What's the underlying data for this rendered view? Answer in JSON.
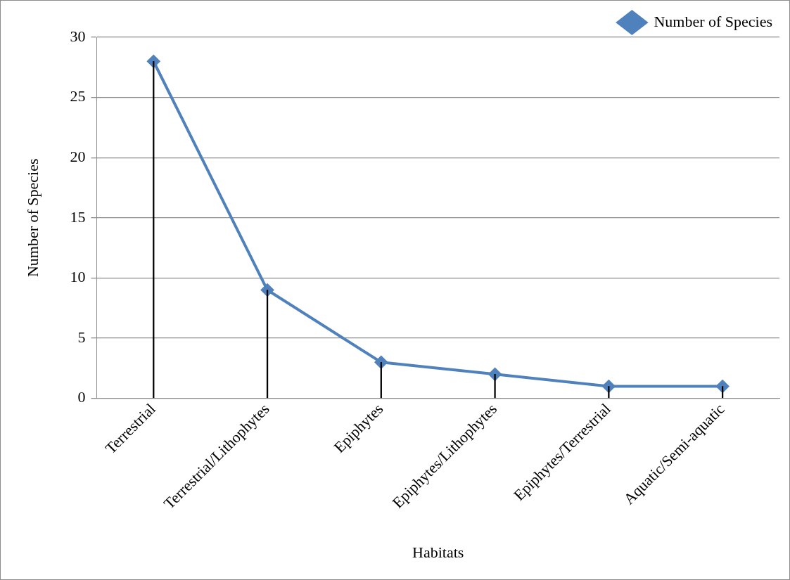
{
  "chart_data": {
    "type": "line",
    "xlabel": "Habitats",
    "ylabel": "Number of Species",
    "categories": [
      "Terrestrial",
      "Terrestrial/Lithophytes",
      "Epiphytes",
      "Epiphytes/Lithophytes",
      "Epiphytes/Terrestrial",
      "Aquatic/Semi-aquatic"
    ],
    "series": [
      {
        "name": "Number of Species",
        "color": "#4f81bd",
        "values": [
          28,
          9,
          3,
          2,
          1,
          1
        ]
      },
      {
        "type": "bar",
        "color": "#000000",
        "values": [
          28,
          9,
          3,
          2,
          1,
          1
        ]
      }
    ],
    "ylim": [
      0,
      30
    ],
    "yticks": [
      0,
      5,
      10,
      15,
      20,
      25,
      30
    ],
    "grid": "y",
    "legend": "top right",
    "marker": "diamond",
    "line_style": "solid"
  }
}
